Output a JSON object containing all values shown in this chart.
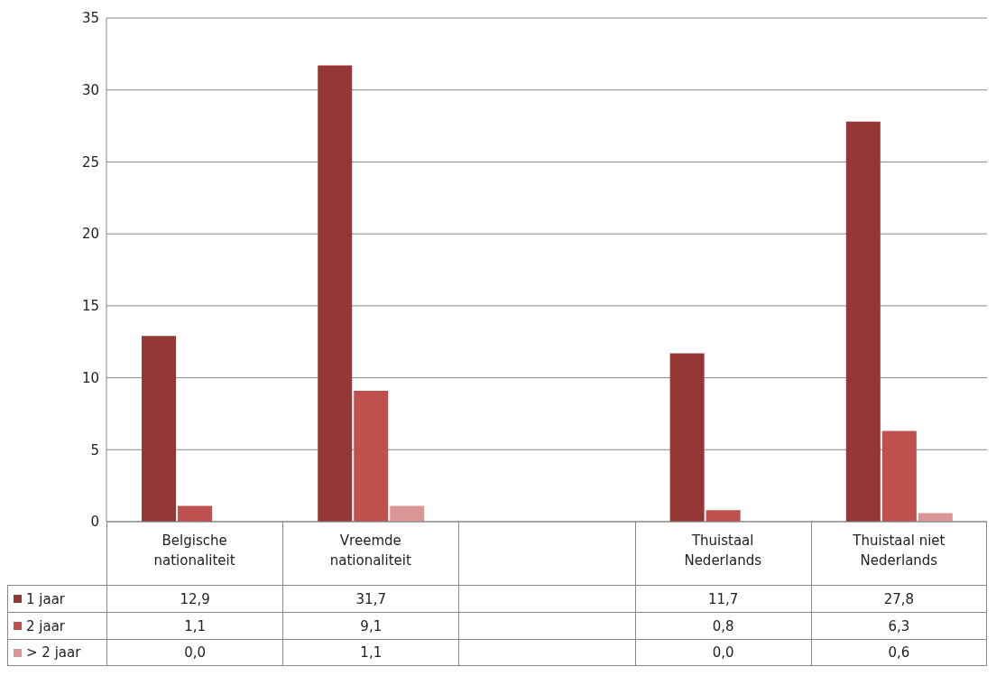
{
  "chart_data": {
    "type": "bar",
    "categories": [
      "Belgische nationaliteit",
      "Vreemde nationaliteit",
      null,
      "Thuistaal Nederlands",
      "Thuistaal niet Nederlands"
    ],
    "series": [
      {
        "name": "1 jaar",
        "color": "#953735",
        "values": [
          12.9,
          31.7,
          null,
          11.7,
          27.8
        ],
        "value_labels": [
          "12,9",
          "31,7",
          null,
          "11,7",
          "27,8"
        ]
      },
      {
        "name": "2 jaar",
        "color": "#c0504d",
        "values": [
          1.1,
          9.1,
          null,
          0.8,
          6.3
        ],
        "value_labels": [
          "1,1",
          "9,1",
          null,
          "0,8",
          "6,3"
        ]
      },
      {
        "name": "> 2 jaar",
        "color": "#d99694",
        "values": [
          0.0,
          1.1,
          null,
          0.0,
          0.6
        ],
        "value_labels": [
          "0,0",
          "1,1",
          null,
          "0,0",
          "0,6"
        ]
      }
    ],
    "ylim": [
      0,
      35
    ],
    "yticks": [
      0,
      5,
      10,
      15,
      20,
      25,
      30,
      35
    ],
    "grid": "y",
    "legend": "bottom"
  }
}
